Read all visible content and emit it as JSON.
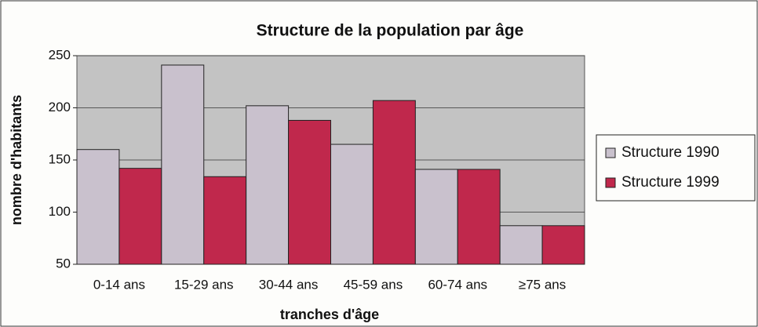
{
  "chart_data": {
    "type": "bar",
    "title": "Structure de la population par âge",
    "x_label": "tranches d'âge",
    "y_label": "nombre d'habitants",
    "categories": [
      "0-14 ans",
      "15-29 ans",
      "30-44 ans",
      "45-59 ans",
      "60-74 ans",
      "≥75 ans"
    ],
    "series": [
      {
        "name": "Structure 1990",
        "color": "#c9c1cd",
        "values": [
          160,
          241,
          202,
          165,
          141,
          87
        ]
      },
      {
        "name": "Structure 1999",
        "color": "#c0284c",
        "values": [
          142,
          134,
          188,
          207,
          141,
          87
        ]
      }
    ],
    "ylim": [
      50,
      250
    ],
    "yticks": [
      50,
      100,
      150,
      200,
      250
    ],
    "grid": true,
    "legend": "right"
  }
}
